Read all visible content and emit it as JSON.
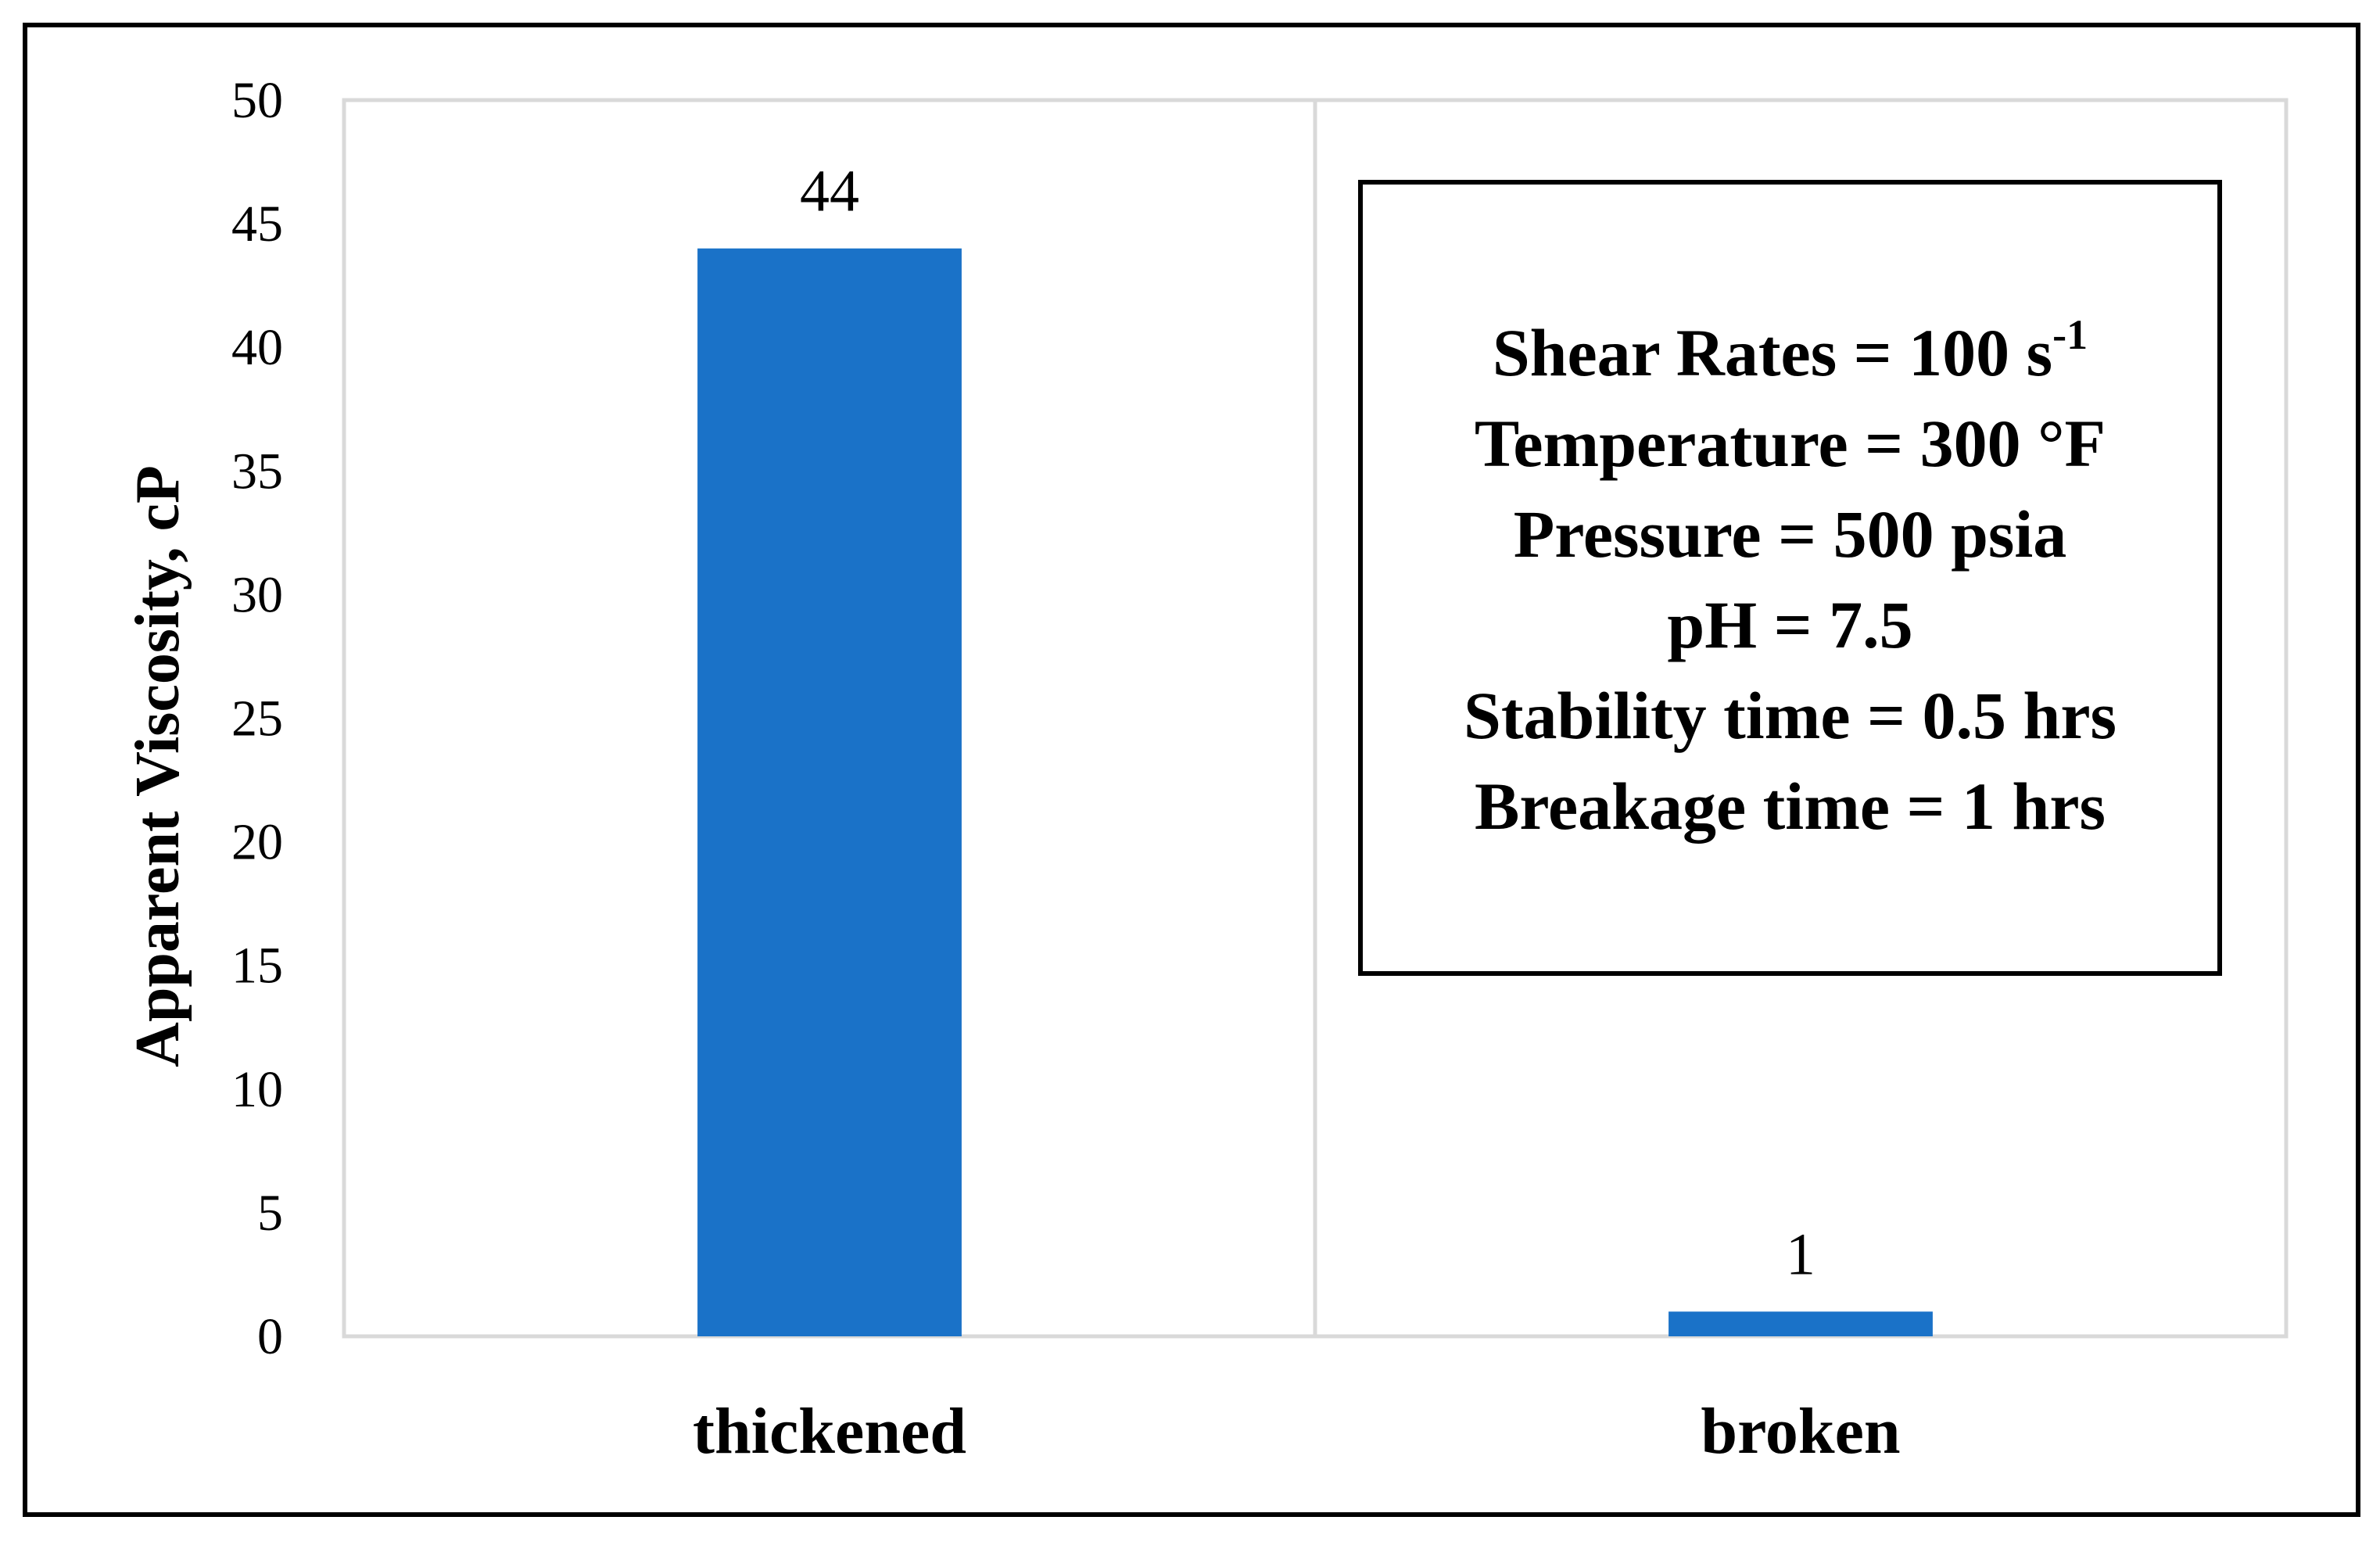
{
  "chart_data": {
    "type": "bar",
    "categories": [
      "thickened",
      "broken"
    ],
    "values": [
      44,
      1
    ],
    "data_labels": [
      "44",
      "1"
    ],
    "xlabel": "",
    "ylabel": "Apparent Viscosity, cP",
    "ylim": [
      0,
      50
    ],
    "yticks": [
      0,
      5,
      10,
      15,
      20,
      25,
      30,
      35,
      40,
      45,
      50
    ],
    "grid": false,
    "bar_color": "#1a72c8",
    "annotation": {
      "lines": [
        {
          "text": "Shear Rates = 100 s",
          "superscript": "-1"
        },
        {
          "text": "Temperature = 300 °F"
        },
        {
          "text": "Pressure = 500 psia"
        },
        {
          "text": "pH = 7.5"
        },
        {
          "text": "Stability time = 0.5 hrs"
        },
        {
          "text": "Breakage time = 1 hrs"
        }
      ]
    }
  }
}
